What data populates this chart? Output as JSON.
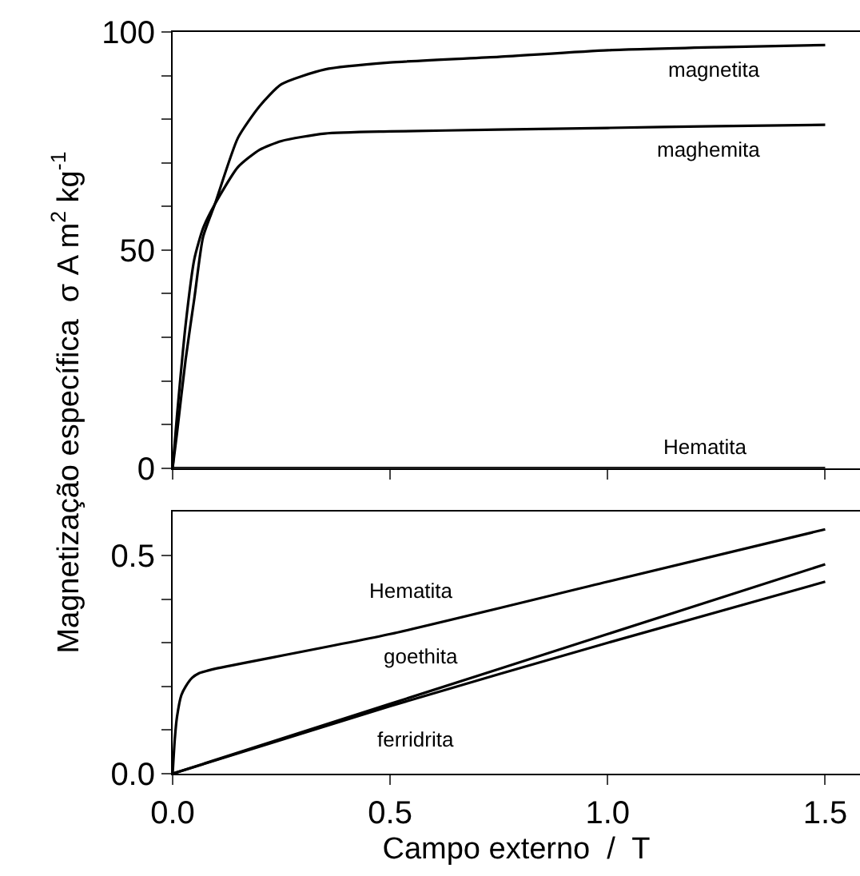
{
  "chart_data": [
    {
      "type": "line",
      "ylabel": "Magnetização específica  σ A m$^{2}$ kg$^{-1}$",
      "xlim": [
        0,
        1.58
      ],
      "xticks": [
        0,
        0.5,
        1.0,
        1.5
      ],
      "ylim": [
        0,
        100
      ],
      "yticks": [
        0,
        {
          "value": 10,
          "label": null
        },
        {
          "value": 20,
          "label": null
        },
        {
          "value": 30,
          "label": null
        },
        {
          "value": 40,
          "label": null
        },
        50,
        {
          "value": 60,
          "label": null
        },
        {
          "value": 70,
          "label": null
        },
        {
          "value": 80,
          "label": null
        },
        {
          "value": 90,
          "label": null
        },
        100
      ],
      "tick_labels": "y",
      "legend": false,
      "marker": "none",
      "line_style": "solid",
      "series": [
        {
          "name": "magnetita",
          "color": "#000000",
          "x": [
            0,
            0.01,
            0.03,
            0.05,
            0.07,
            0.097,
            0.15,
            0.2,
            0.25,
            0.35,
            0.5,
            0.75,
            1.0,
            1.25,
            1.5
          ],
          "values": [
            0,
            8,
            25,
            39,
            53,
            60.5,
            75.7,
            83,
            88,
            91.4,
            93,
            94.3,
            95.8,
            96.5,
            97
          ]
        },
        {
          "name": "maghemita",
          "color": "#000000",
          "x": [
            0,
            0.01,
            0.03,
            0.05,
            0.07,
            0.097,
            0.15,
            0.2,
            0.25,
            0.35,
            0.5,
            0.75,
            1.0,
            1.25,
            1.5
          ],
          "values": [
            0,
            12,
            33,
            48,
            55,
            60.5,
            69,
            73,
            75,
            76.7,
            77.2,
            77.6,
            78,
            78.4,
            78.7
          ]
        },
        {
          "name": "Hematita",
          "color": "#000000",
          "x": [
            0,
            0.5,
            1.0,
            1.5
          ],
          "values": [
            0,
            0,
            0,
            0
          ]
        }
      ]
    },
    {
      "type": "line",
      "xlabel": "Campo externo  /  T",
      "xlim": [
        0,
        1.58
      ],
      "xticks": [
        {
          "value": 0,
          "label": "0.0"
        },
        {
          "value": 0.5,
          "label": "0.5"
        },
        {
          "value": 1.0,
          "label": "1.0"
        },
        {
          "value": 1.5,
          "label": "1.5"
        }
      ],
      "ylim": [
        0,
        0.6
      ],
      "yticks": [
        {
          "value": 0,
          "label": "0.0"
        },
        {
          "value": 0.1,
          "label": null
        },
        {
          "value": 0.2,
          "label": null
        },
        {
          "value": 0.3,
          "label": null
        },
        {
          "value": 0.4,
          "label": null
        },
        {
          "value": 0.5,
          "label": "0.5"
        }
      ],
      "legend": false,
      "marker": "none",
      "line_style": "solid",
      "series": [
        {
          "name": "Hematita",
          "color": "#000000",
          "x": [
            0,
            0.005,
            0.01,
            0.02,
            0.03,
            0.045,
            0.06,
            0.08,
            0.1,
            0.5,
            1.0,
            1.5
          ],
          "values": [
            0,
            0.08,
            0.13,
            0.18,
            0.2,
            0.22,
            0.23,
            0.236,
            0.241,
            0.32,
            0.44,
            0.56
          ]
        },
        {
          "name": "goethita",
          "color": "#000000",
          "x": [
            0,
            0.5,
            1.0,
            1.5
          ],
          "values": [
            0,
            0.16,
            0.32,
            0.48
          ]
        },
        {
          "name": "ferridrita",
          "color": "#000000",
          "x": [
            0,
            0.5,
            1.0,
            1.5
          ],
          "values": [
            0,
            0.155,
            0.3,
            0.44
          ]
        }
      ]
    }
  ]
}
